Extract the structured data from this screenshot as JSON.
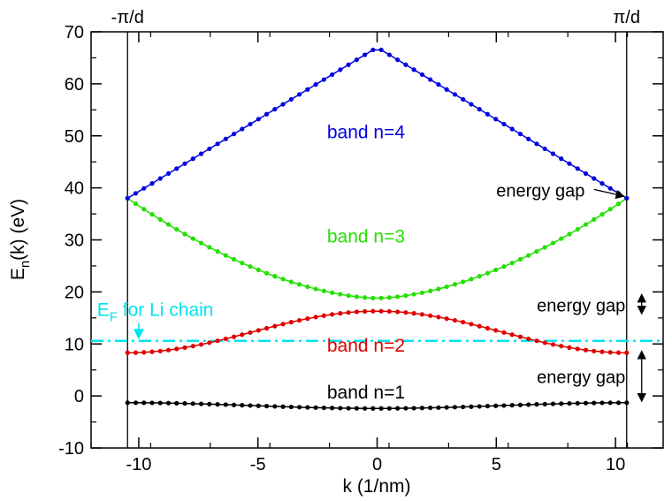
{
  "chart_data": {
    "type": "line",
    "xlabel": "k (1/nm)",
    "ylabel_main": "E",
    "ylabel_sub": "n",
    "ylabel_rest": "(k) (eV)",
    "xlim": [
      -12,
      12
    ],
    "ylim": [
      -10,
      70
    ],
    "x_ticks": [
      -10,
      -5,
      0,
      5,
      10
    ],
    "x_tick_labels": [
      "-10",
      "-5",
      "0",
      "5",
      "10"
    ],
    "y_ticks": [
      -10,
      0,
      10,
      20,
      30,
      40,
      50,
      60,
      70
    ],
    "y_tick_labels": [
      "-10",
      "0",
      "10",
      "20",
      "30",
      "40",
      "50",
      "60",
      "70"
    ],
    "grid": false,
    "zone_boundaries": [
      {
        "x": -10.47,
        "label": "-π/d"
      },
      {
        "x": 10.47,
        "label": "π/d"
      }
    ],
    "fermi_level": {
      "y": 10.6,
      "label_main": "E",
      "label_sub": "F",
      "label_rest": " for Li chain",
      "color": "#00e5ee"
    },
    "series": [
      {
        "name": "band n=1",
        "color": "#000000",
        "k_max": 10.47,
        "shape": "flat",
        "values": {
          "center": -2.4,
          "edge": -1.3
        }
      },
      {
        "name": "band n=2",
        "color": "#e00000",
        "k_max": 10.47,
        "shape": "cosine",
        "values": {
          "center": 16.3,
          "edge": 8.3
        }
      },
      {
        "name": "band n=3",
        "color": "#22e000",
        "k_max": 10.47,
        "shape": "vee",
        "values": {
          "center": 18.8,
          "edge": 38.0
        }
      },
      {
        "name": "band n=4",
        "color": "#0000e0",
        "k_max": 10.47,
        "shape": "linear",
        "values": {
          "center": 67.0,
          "edge": 38.0
        }
      }
    ],
    "band_labels": [
      {
        "text": "band n=4",
        "color": "#0000e0",
        "x": -2.1,
        "y": 49.5
      },
      {
        "text": "band n=3",
        "color": "#22e000",
        "x": -2.1,
        "y": 29.5
      },
      {
        "text": "band n=2",
        "color": "#e00000",
        "x": -2.1,
        "y": 8.5
      },
      {
        "text": "band n=1",
        "color": "#000000",
        "x": -2.1,
        "y": -0.5
      }
    ],
    "annotations": [
      {
        "text": "energy gap",
        "x": 5.0,
        "y": 38.3
      },
      {
        "text": "energy gap",
        "x": 6.7,
        "y": 16.2
      },
      {
        "text": "energy gap",
        "x": 6.7,
        "y": 2.5
      }
    ]
  }
}
